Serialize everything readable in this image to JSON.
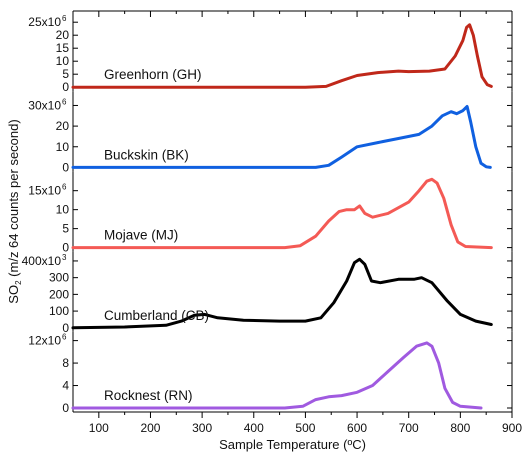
{
  "chart_data": {
    "type": "line",
    "xlabel": "Sample Temperature (ºC)",
    "ylabel": "SO2 (m/z 64 counts per second)",
    "ylabel_main": "SO",
    "ylabel_sub": "2",
    "ylabel_rest": " (m/z 64 counts per second)",
    "xlim": [
      50,
      900
    ],
    "xticks": [
      100,
      200,
      300,
      400,
      500,
      600,
      700,
      800,
      900
    ],
    "panels": [
      {
        "name": "Greenhorn (GH)",
        "color": "#c0281a",
        "ylim": [
          0,
          27000000
        ],
        "yticks": [
          0,
          5000000,
          10000000,
          15000000,
          20000000,
          25000000
        ],
        "ytick_labels": [
          "0",
          "5",
          "10",
          "15",
          "20",
          "25x10"
        ],
        "exp": "6",
        "points": [
          [
            50,
            0
          ],
          [
            300,
            0
          ],
          [
            500,
            0
          ],
          [
            540,
            300000.0
          ],
          [
            570,
            2500000.0
          ],
          [
            600,
            4500000.0
          ],
          [
            640,
            5600000.0
          ],
          [
            680,
            6200000.0
          ],
          [
            700,
            6000000.0
          ],
          [
            740,
            6200000.0
          ],
          [
            770,
            7000000.0
          ],
          [
            790,
            12000000.0
          ],
          [
            805,
            18000000.0
          ],
          [
            812,
            23000000.0
          ],
          [
            818,
            24000000.0
          ],
          [
            825,
            20000000.0
          ],
          [
            833,
            12000000.0
          ],
          [
            842,
            4000000.0
          ],
          [
            852,
            1000000.0
          ],
          [
            860,
            300000.0
          ]
        ]
      },
      {
        "name": "Buckskin (BK)",
        "color": "#1060e0",
        "ylim": [
          0,
          34000000
        ],
        "yticks": [
          0,
          10000000,
          20000000,
          30000000
        ],
        "ytick_labels": [
          "0",
          "10",
          "20",
          "30x10"
        ],
        "exp": "6",
        "points": [
          [
            50,
            0
          ],
          [
            300,
            0
          ],
          [
            520,
            0
          ],
          [
            545,
            1000000.0
          ],
          [
            570,
            5000000.0
          ],
          [
            600,
            10000000.0
          ],
          [
            640,
            12000000.0
          ],
          [
            680,
            14000000.0
          ],
          [
            720,
            16000000.0
          ],
          [
            745,
            20000000.0
          ],
          [
            765,
            25000000.0
          ],
          [
            782,
            27000000.0
          ],
          [
            793,
            26000000.0
          ],
          [
            805,
            27500000.0
          ],
          [
            813,
            29500000.0
          ],
          [
            820,
            22000000.0
          ],
          [
            830,
            10000000.0
          ],
          [
            840,
            2000000.0
          ],
          [
            850,
            300000.0
          ],
          [
            858,
            0
          ]
        ]
      },
      {
        "name": "Mojave (MJ)",
        "color": "#f45a55",
        "ylim": [
          0,
          18500000
        ],
        "yticks": [
          0,
          5000000,
          10000000,
          15000000
        ],
        "ytick_labels": [
          "0",
          "5",
          "10",
          "15x10"
        ],
        "exp": "6",
        "points": [
          [
            50,
            0
          ],
          [
            300,
            0
          ],
          [
            460,
            0
          ],
          [
            490,
            500000.0
          ],
          [
            520,
            3000000.0
          ],
          [
            545,
            7000000.0
          ],
          [
            565,
            9500000.0
          ],
          [
            580,
            10000000.0
          ],
          [
            595,
            10000000.0
          ],
          [
            605,
            11000000.0
          ],
          [
            615,
            9000000.0
          ],
          [
            630,
            8000000.0
          ],
          [
            660,
            9000000.0
          ],
          [
            700,
            12000000.0
          ],
          [
            720,
            15000000.0
          ],
          [
            735,
            17500000.0
          ],
          [
            745,
            18000000.0
          ],
          [
            755,
            17000000.0
          ],
          [
            768,
            13000000.0
          ],
          [
            782,
            6000000.0
          ],
          [
            795,
            1500000.0
          ],
          [
            810,
            300000.0
          ],
          [
            860,
            0
          ]
        ]
      },
      {
        "name": "Cumberland (CB)",
        "color": "#000000",
        "ylim": [
          0,
          420000
        ],
        "yticks": [
          0,
          100000,
          200000,
          300000,
          400000
        ],
        "ytick_labels": [
          "0",
          "100",
          "200",
          "300",
          "400x10"
        ],
        "exp": "3",
        "points": [
          [
            50,
            0
          ],
          [
            150,
            5000
          ],
          [
            230,
            15000
          ],
          [
            260,
            40000
          ],
          [
            285,
            75000
          ],
          [
            305,
            80000
          ],
          [
            330,
            60000
          ],
          [
            380,
            45000
          ],
          [
            450,
            40000
          ],
          [
            500,
            40000
          ],
          [
            530,
            60000
          ],
          [
            555,
            150000
          ],
          [
            580,
            280000
          ],
          [
            595,
            390000
          ],
          [
            605,
            410000
          ],
          [
            615,
            380000
          ],
          [
            628,
            280000
          ],
          [
            645,
            270000
          ],
          [
            680,
            290000
          ],
          [
            710,
            290000
          ],
          [
            725,
            300000
          ],
          [
            745,
            270000
          ],
          [
            775,
            160000
          ],
          [
            800,
            80000
          ],
          [
            830,
            40000
          ],
          [
            860,
            20000
          ]
        ]
      },
      {
        "name": "Rocknest (RN)",
        "color": "#a05ae0",
        "ylim": [
          0,
          12500000
        ],
        "yticks": [
          0,
          4000000,
          8000000,
          12000000
        ],
        "ytick_labels": [
          "0",
          "4",
          "8",
          "12x10"
        ],
        "exp": "6",
        "points": [
          [
            50,
            0
          ],
          [
            300,
            0
          ],
          [
            460,
            0
          ],
          [
            495,
            300000.0
          ],
          [
            520,
            1500000.0
          ],
          [
            545,
            2000000.0
          ],
          [
            570,
            2200000.0
          ],
          [
            600,
            2800000.0
          ],
          [
            630,
            4000000.0
          ],
          [
            660,
            6500000.0
          ],
          [
            690,
            9000000.0
          ],
          [
            715,
            11000000.0
          ],
          [
            735,
            11600000.0
          ],
          [
            745,
            11000000.0
          ],
          [
            758,
            8000000.0
          ],
          [
            770,
            3500000.0
          ],
          [
            785,
            1000000.0
          ],
          [
            800,
            300000.0
          ],
          [
            840,
            0
          ]
        ]
      }
    ]
  }
}
